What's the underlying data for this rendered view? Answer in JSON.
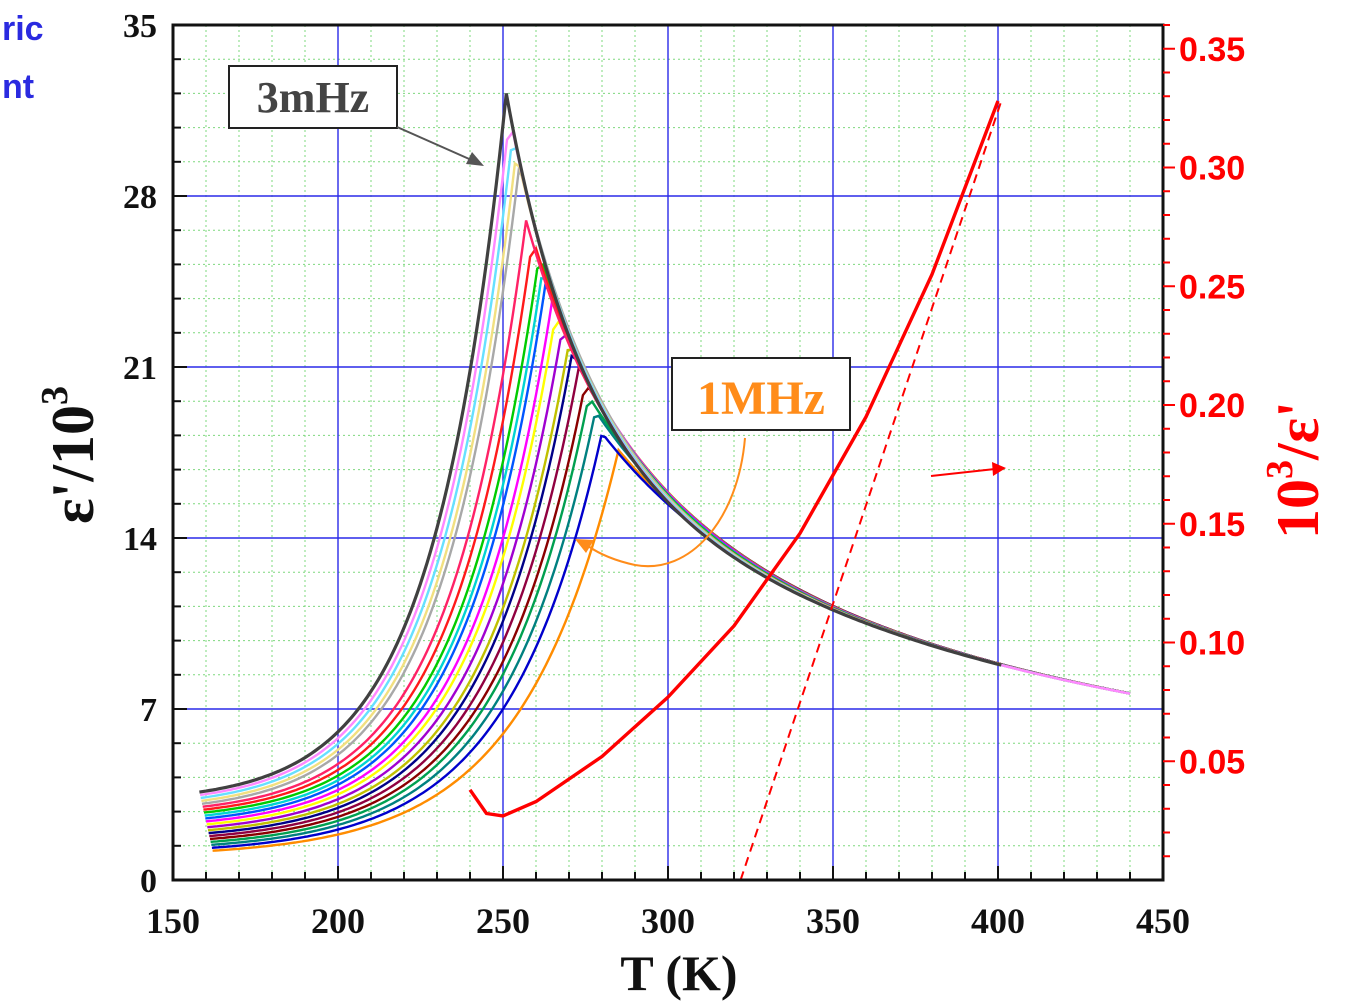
{
  "partial_title": [
    "ric",
    "nt"
  ],
  "chart_data": {
    "type": "line",
    "xlabel": "T (K)",
    "ylabel_left": "ε'/10",
    "ylabel_left_sup": "3",
    "ylabel_right": "10",
    "ylabel_right_sup": "3",
    "ylabel_right_tail": "/ε'",
    "xlim": [
      150,
      450
    ],
    "ylim_left": [
      0,
      35
    ],
    "ylim_right": [
      0.0,
      0.36
    ],
    "x_ticks": [
      "150",
      "200",
      "250",
      "300",
      "350",
      "400",
      "450"
    ],
    "y_ticks_left": [
      "0",
      "7",
      "14",
      "21",
      "28",
      "35"
    ],
    "y_ticks_right": [
      "0.05",
      "0.10",
      "0.15",
      "0.20",
      "0.25",
      "0.30",
      "0.35"
    ],
    "grid": true,
    "annotations": [
      {
        "text": "3mHz",
        "color": "#444444"
      },
      {
        "text": "1MHz",
        "color": "#ff8c1a"
      }
    ],
    "series_colors": [
      "#404040",
      "#ff88ff",
      "#66e0ff",
      "#f2e080",
      "#a8a8a8",
      "#ff2266",
      "#ff1a1a",
      "#00cc00",
      "#00d4d4",
      "#0055ff",
      "#ff00ff",
      "#ffff00",
      "#a000d0",
      "#c0c000",
      "#000088",
      "#900040",
      "#8a0000",
      "#00a050",
      "#008080",
      "#0000cc",
      "#ff8c00"
    ],
    "series_peaks": [
      {
        "peak_T": 251,
        "peak_eps": 32.2
      },
      {
        "peak_T": 252,
        "peak_eps": 31.3
      },
      {
        "peak_T": 253,
        "peak_eps": 30.6
      },
      {
        "peak_T": 254,
        "peak_eps": 29.8
      },
      {
        "peak_T": 255,
        "peak_eps": 29.3
      },
      {
        "peak_T": 257,
        "peak_eps": 27.0
      },
      {
        "peak_T": 259,
        "peak_eps": 26.3
      },
      {
        "peak_T": 261,
        "peak_eps": 25.6
      },
      {
        "peak_T": 262,
        "peak_eps": 25.0
      },
      {
        "peak_T": 263,
        "peak_eps": 24.5
      },
      {
        "peak_T": 265,
        "peak_eps": 23.8
      },
      {
        "peak_T": 266,
        "peak_eps": 23.2
      },
      {
        "peak_T": 268,
        "peak_eps": 22.6
      },
      {
        "peak_T": 270,
        "peak_eps": 22.0
      },
      {
        "peak_T": 271,
        "peak_eps": 21.6
      },
      {
        "peak_T": 273,
        "peak_eps": 21.0
      },
      {
        "peak_T": 275,
        "peak_eps": 20.4
      },
      {
        "peak_T": 276,
        "peak_eps": 19.8
      },
      {
        "peak_T": 278,
        "peak_eps": 19.2
      },
      {
        "peak_T": 280,
        "peak_eps": 18.3
      },
      {
        "peak_T": 285,
        "peak_eps": 17.6
      }
    ],
    "inverse_series": {
      "color": "#ff0000",
      "axis": "right",
      "x": [
        240,
        245,
        250,
        260,
        280,
        300,
        320,
        340,
        360,
        380,
        400
      ],
      "y": [
        0.038,
        0.028,
        0.027,
        0.033,
        0.052,
        0.077,
        0.107,
        0.146,
        0.195,
        0.255,
        0.328
      ]
    },
    "linear_fit": {
      "color": "#ff0000",
      "axis": "right",
      "style": "dashed",
      "x": [
        322,
        401
      ],
      "y": [
        0.0,
        0.328
      ]
    }
  }
}
